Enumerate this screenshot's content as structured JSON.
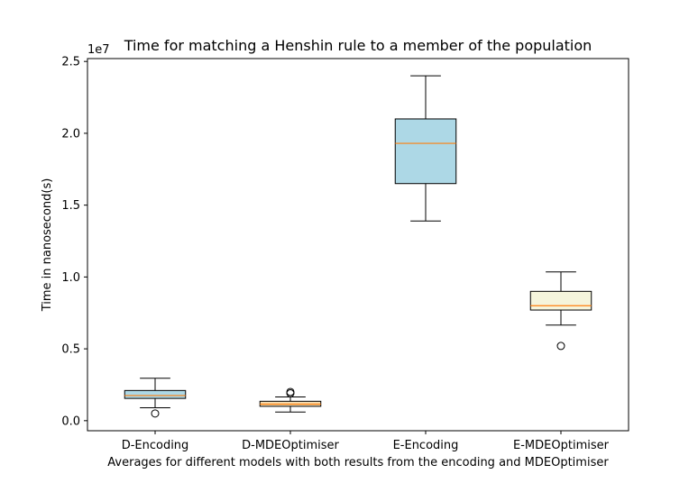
{
  "chart_data": {
    "type": "box",
    "title": "Time for matching a Henshin rule to a member of the population",
    "xlabel": "Averages for different models with both results from the encoding and MDEOptimiser",
    "ylabel": "Time in nanosecond(s)",
    "y_offset_label": "1e7",
    "ylim": [
      -0.07,
      2.52
    ],
    "yticks": [
      0.0,
      0.5,
      1.0,
      1.5,
      2.0,
      2.5
    ],
    "ytick_labels": [
      "0.0",
      "0.5",
      "1.0",
      "1.5",
      "2.0",
      "2.5"
    ],
    "categories": [
      "D-Encoding",
      "D-MDEOptimiser",
      "E-Encoding",
      "E-MDEOptimiser"
    ],
    "boxes": [
      {
        "category": "D-Encoding",
        "whislo": 0.09,
        "q1": 0.155,
        "med": 0.175,
        "q3": 0.21,
        "whishi": 0.295,
        "fliers": [
          0.05
        ],
        "color": "#add8e6"
      },
      {
        "category": "D-MDEOptimiser",
        "whislo": 0.06,
        "q1": 0.1,
        "med": 0.115,
        "q3": 0.135,
        "whishi": 0.165,
        "fliers": [
          0.19,
          0.2
        ],
        "color": "#f5deb3"
      },
      {
        "category": "E-Encoding",
        "whislo": 1.39,
        "q1": 1.65,
        "med": 1.93,
        "q3": 2.1,
        "whishi": 2.4,
        "fliers": [],
        "color": "#add8e6"
      },
      {
        "category": "E-MDEOptimiser",
        "whislo": 0.665,
        "q1": 0.77,
        "med": 0.8,
        "q3": 0.9,
        "whishi": 1.035,
        "fliers": [
          0.52
        ],
        "color": "#f5f5dc"
      }
    ],
    "median_color": "#ff7f0e",
    "grid": false
  }
}
